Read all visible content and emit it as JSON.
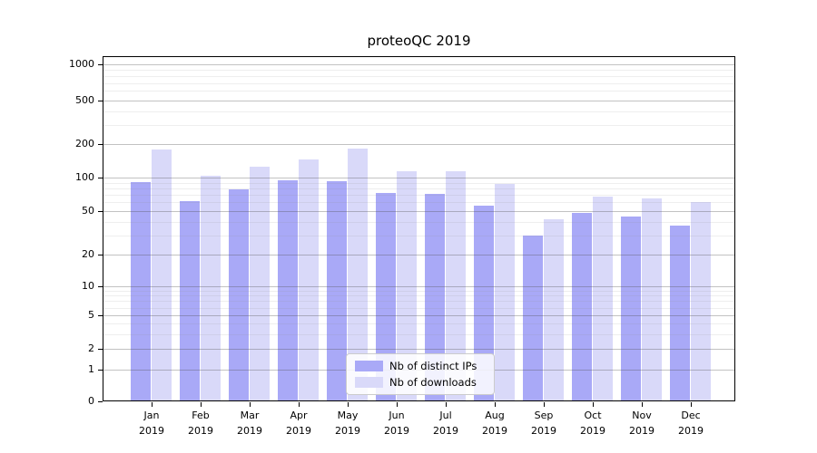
{
  "title": "proteoQC 2019",
  "legend": {
    "items": [
      {
        "label": "Nb of distinct IPs",
        "color": "#a9a9f7"
      },
      {
        "label": "Nb of downloads",
        "color": "#d9d9f9"
      }
    ]
  },
  "y_axis": {
    "tick_labels": [
      "0",
      "1",
      "2",
      "5",
      "10",
      "20",
      "50",
      "100",
      "200",
      "500",
      "1000"
    ]
  },
  "x_axis": {
    "tick_labels": [
      "Jan 2019",
      "Feb 2019",
      "Mar 2019",
      "Apr 2019",
      "May 2019",
      "Jun 2019",
      "Jul 2019",
      "Aug 2019",
      "Sep 2019",
      "Oct 2019",
      "Nov 2019",
      "Dec 2019"
    ]
  },
  "chart_data": {
    "type": "bar",
    "title": "proteoQC 2019",
    "categories": [
      "Jan 2019",
      "Feb 2019",
      "Mar 2019",
      "Apr 2019",
      "May 2019",
      "Jun 2019",
      "Jul 2019",
      "Aug 2019",
      "Sep 2019",
      "Oct 2019",
      "Nov 2019",
      "Dec 2019"
    ],
    "series": [
      {
        "name": "Nb of distinct IPs",
        "color": "#a9a9f7",
        "values": [
          91,
          61,
          78,
          95,
          93,
          73,
          71,
          56,
          30,
          48,
          45,
          37
        ]
      },
      {
        "name": "Nb of downloads",
        "color": "#d9d9f9",
        "values": [
          178,
          104,
          125,
          145,
          182,
          113,
          113,
          88,
          42,
          68,
          65,
          60
        ]
      }
    ],
    "xlabel": "",
    "ylabel": "",
    "yscale": "symlog",
    "yticks": [
      0,
      1,
      2,
      5,
      10,
      20,
      50,
      100,
      200,
      500,
      1000
    ],
    "ylim": [
      0,
      1400
    ],
    "grid": "on",
    "minor_grid": "on",
    "legend_position": "lower center"
  }
}
